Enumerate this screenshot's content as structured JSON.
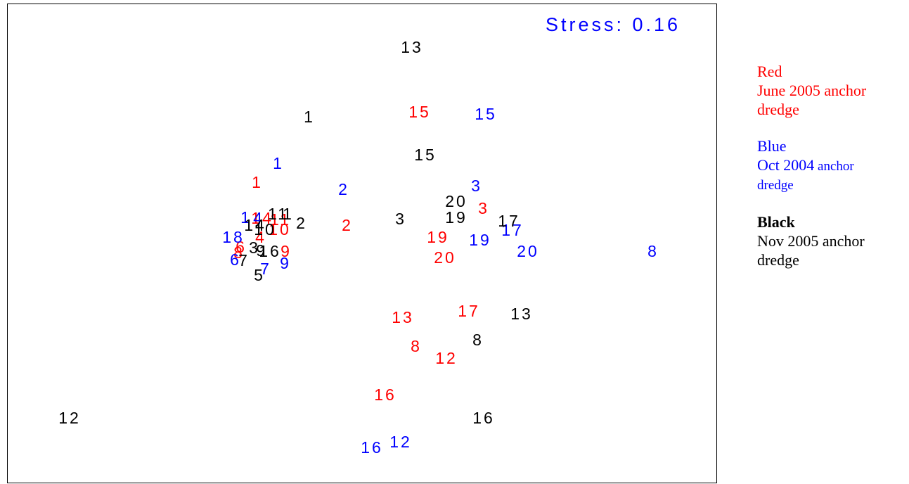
{
  "chart_data": {
    "type": "scatter",
    "annotation": "Stress: 0.16",
    "colors": {
      "red": "#ff0000",
      "blue": "#0000ff",
      "black": "#000000"
    },
    "xlim": [
      0,
      1010
    ],
    "ylim": [
      0,
      682
    ],
    "series": [
      {
        "color": "#ff0000",
        "points": [
          {
            "label": "15",
            "x": 586,
            "y": 155
          },
          {
            "label": "1",
            "x": 355,
            "y": 255
          },
          {
            "label": "2",
            "x": 483,
            "y": 316
          },
          {
            "label": "3",
            "x": 677,
            "y": 292
          },
          {
            "label": "19",
            "x": 612,
            "y": 333
          },
          {
            "label": "20",
            "x": 622,
            "y": 362
          },
          {
            "label": "10",
            "x": 387,
            "y": 322
          },
          {
            "label": "14",
            "x": 362,
            "y": 306
          },
          {
            "label": "11",
            "x": 388,
            "y": 308
          },
          {
            "label": "4",
            "x": 360,
            "y": 333
          },
          {
            "label": "6",
            "x": 332,
            "y": 347
          },
          {
            "label": "8",
            "x": 329,
            "y": 355
          },
          {
            "label": "9",
            "x": 396,
            "y": 353
          },
          {
            "label": "13",
            "x": 562,
            "y": 447
          },
          {
            "label": "17",
            "x": 656,
            "y": 438
          },
          {
            "label": "8",
            "x": 581,
            "y": 488
          },
          {
            "label": "12",
            "x": 624,
            "y": 505
          },
          {
            "label": "16",
            "x": 537,
            "y": 557
          }
        ]
      },
      {
        "color": "#0000ff",
        "points": [
          {
            "label": "15",
            "x": 680,
            "y": 158
          },
          {
            "label": "1",
            "x": 385,
            "y": 228
          },
          {
            "label": "2",
            "x": 478,
            "y": 265
          },
          {
            "label": "3",
            "x": 667,
            "y": 260
          },
          {
            "label": "1",
            "x": 339,
            "y": 305
          },
          {
            "label": "4",
            "x": 357,
            "y": 306
          },
          {
            "label": "18",
            "x": 321,
            "y": 333
          },
          {
            "label": "6",
            "x": 324,
            "y": 365
          },
          {
            "label": "7",
            "x": 367,
            "y": 378
          },
          {
            "label": "9",
            "x": 395,
            "y": 370
          },
          {
            "label": "19",
            "x": 672,
            "y": 337
          },
          {
            "label": "17",
            "x": 718,
            "y": 323
          },
          {
            "label": "20",
            "x": 740,
            "y": 353
          },
          {
            "label": "8",
            "x": 918,
            "y": 353
          },
          {
            "label": "16",
            "x": 518,
            "y": 632
          },
          {
            "label": "12",
            "x": 559,
            "y": 624
          }
        ]
      },
      {
        "color": "#000000",
        "points": [
          {
            "label": "13",
            "x": 575,
            "y": 63
          },
          {
            "label": "1",
            "x": 429,
            "y": 162
          },
          {
            "label": "15",
            "x": 594,
            "y": 216
          },
          {
            "label": "20",
            "x": 638,
            "y": 282
          },
          {
            "label": "19",
            "x": 638,
            "y": 305
          },
          {
            "label": "17",
            "x": 713,
            "y": 310
          },
          {
            "label": "3",
            "x": 559,
            "y": 307
          },
          {
            "label": "2",
            "x": 418,
            "y": 313
          },
          {
            "label": "11",
            "x": 385,
            "y": 300
          },
          {
            "label": "1",
            "x": 399,
            "y": 300
          },
          {
            "label": "14",
            "x": 352,
            "y": 316
          },
          {
            "label": "10",
            "x": 366,
            "y": 322
          },
          {
            "label": "3",
            "x": 351,
            "y": 348
          },
          {
            "label": "9",
            "x": 361,
            "y": 352
          },
          {
            "label": "16",
            "x": 373,
            "y": 353
          },
          {
            "label": "7",
            "x": 336,
            "y": 366
          },
          {
            "label": "5",
            "x": 358,
            "y": 387
          },
          {
            "label": "13",
            "x": 731,
            "y": 442
          },
          {
            "label": "8",
            "x": 669,
            "y": 479
          },
          {
            "label": "12",
            "x": 88,
            "y": 590
          },
          {
            "label": "16",
            "x": 677,
            "y": 590
          }
        ]
      }
    ]
  },
  "legend": {
    "red": {
      "color_word": "Red",
      "text_line1": "June 2005 anchor",
      "text_line2": "dredge"
    },
    "blue": {
      "color_word": "Blue",
      "text_line1_a": "Oct 2004",
      "text_line1_b": " anchor",
      "text_line2": "dredge"
    },
    "black": {
      "color_word": "Black",
      "text_line1": "Nov 2005 anchor",
      "text_line2": "dredge"
    }
  }
}
